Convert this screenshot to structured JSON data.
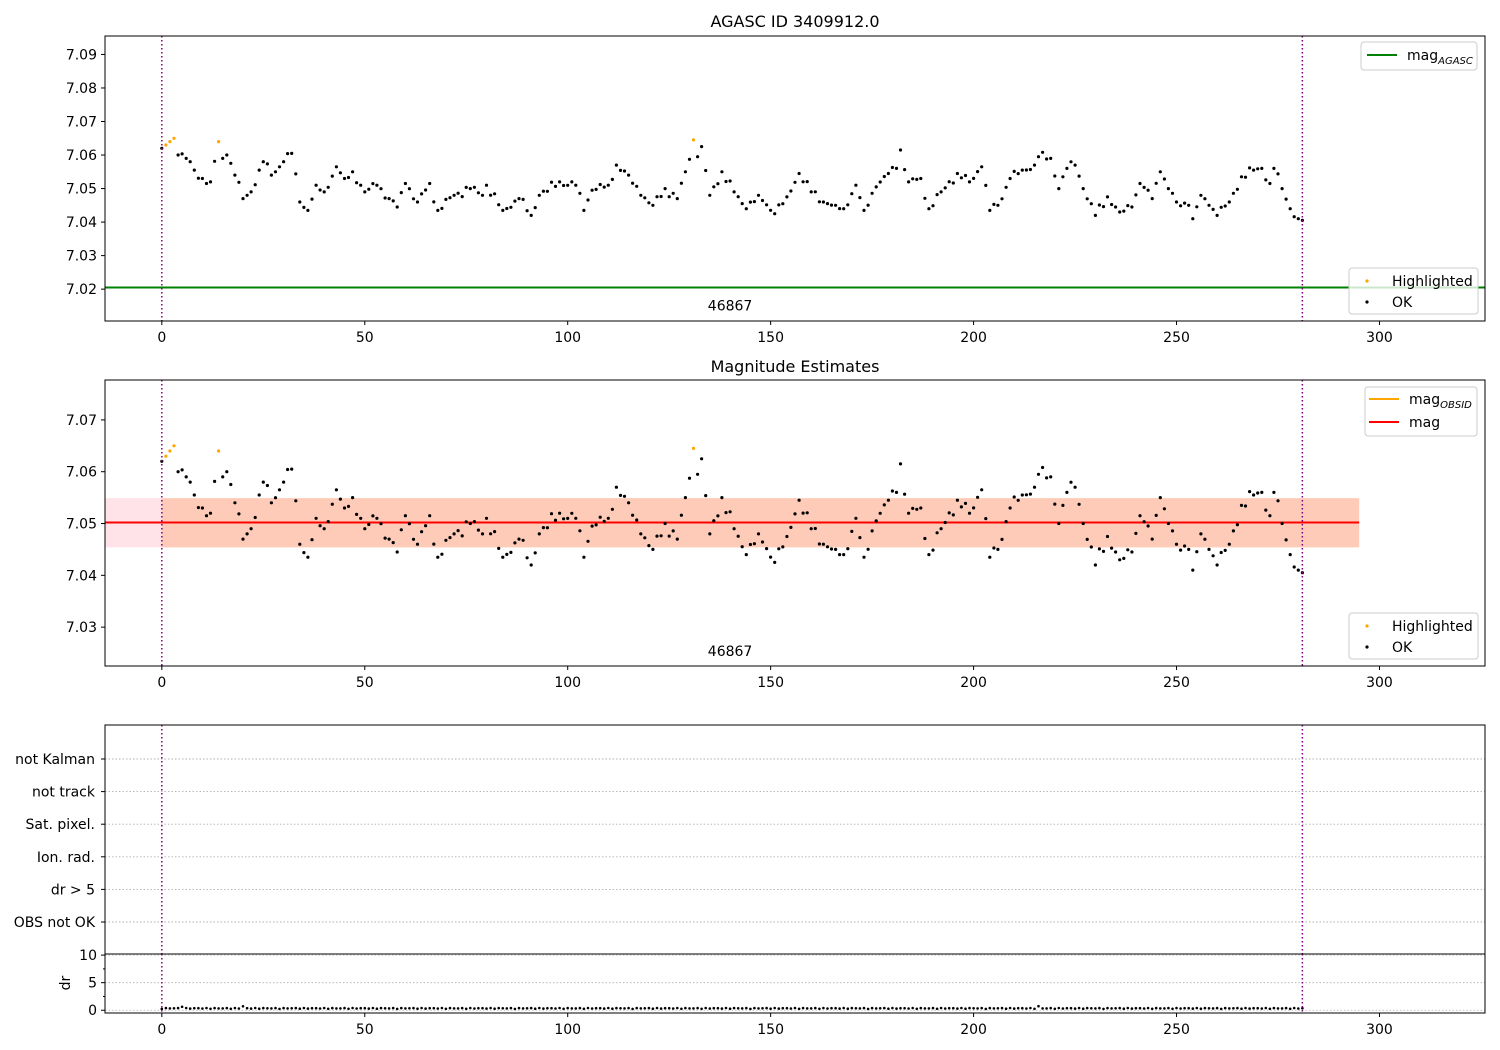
{
  "colors": {
    "ok": "#000000",
    "highlighted": "#ffa500",
    "mag_agasc": "#008000",
    "mag_obsid": "#ffa500",
    "mag": "#ff0000",
    "band_outer": "#ffc0cb",
    "band_inner": "#ffb48a",
    "obs_boundary": "#800080",
    "grid": "#b0b0b0"
  },
  "chart_data": [
    {
      "type": "scatter",
      "title": "AGASC ID 3409912.0",
      "xlim": [
        -14,
        326
      ],
      "ylim": [
        7.0105,
        7.0955
      ],
      "xticks": [
        0,
        50,
        100,
        150,
        200,
        250,
        300
      ],
      "yticks": [
        7.02,
        7.03,
        7.04,
        7.05,
        7.06,
        7.07,
        7.08,
        7.09
      ],
      "obs_boundaries": [
        0,
        281
      ],
      "obsid_label": {
        "text": "46867",
        "x": 140,
        "y": 7.0137
      },
      "hline": {
        "name": "mag",
        "subscript": "AGASC",
        "y": 7.0205,
        "x": [
          -14,
          326
        ]
      },
      "legend": [
        {
          "position": "upper-right",
          "entries": [
            {
              "name": "mag",
              "subscript": "AGASC",
              "kind": "line",
              "color_key": "mag_agasc"
            }
          ]
        },
        {
          "position": "lower-right",
          "entries": [
            {
              "name": "Highlighted",
              "kind": "dot",
              "color_key": "highlighted"
            },
            {
              "name": "OK",
              "kind": "dot",
              "color_key": "ok"
            }
          ]
        }
      ]
    },
    {
      "type": "scatter",
      "title": "Magnitude Estimates",
      "xlim": [
        -14,
        326
      ],
      "ylim": [
        7.0225,
        7.0777
      ],
      "xticks": [
        0,
        50,
        100,
        150,
        200,
        250,
        300
      ],
      "yticks": [
        7.03,
        7.04,
        7.05,
        7.06,
        7.07
      ],
      "obs_boundaries": [
        0,
        281
      ],
      "obsid_label": {
        "text": "46867",
        "x": 140,
        "y": 7.0244
      },
      "mag_line": {
        "y": 7.0502,
        "x": [
          -14,
          295
        ]
      },
      "mag_obsid_line": {
        "y": 7.0502,
        "x": [
          0,
          281
        ]
      },
      "band_outer": {
        "y": [
          7.0454,
          7.0549
        ],
        "x": [
          -14,
          295
        ]
      },
      "band_inner": {
        "y": [
          7.0454,
          7.0549
        ],
        "x": [
          0,
          295
        ]
      },
      "legend": [
        {
          "position": "upper-right",
          "entries": [
            {
              "name": "mag",
              "subscript": "OBSID",
              "kind": "line",
              "color_key": "mag_obsid"
            },
            {
              "name": "mag",
              "kind": "line",
              "color_key": "mag"
            }
          ]
        },
        {
          "position": "lower-right",
          "entries": [
            {
              "name": "Highlighted",
              "kind": "dot",
              "color_key": "highlighted"
            },
            {
              "name": "OK",
              "kind": "dot",
              "color_key": "ok"
            }
          ]
        }
      ]
    },
    {
      "type": "scatter",
      "title": "",
      "categories": [
        "OBS not OK",
        "dr > 5",
        "Ion. rad.",
        "Sat. pixel.",
        "not track",
        "not Kalman"
      ],
      "flags_set": [],
      "xlim": [
        -14,
        326
      ],
      "obs_boundaries": [
        0,
        281
      ]
    },
    {
      "type": "scatter",
      "title": "",
      "ylabel": "dr",
      "xlim": [
        -14,
        326
      ],
      "ylim": [
        -0.5,
        10.2
      ],
      "yticks": [
        0,
        5,
        10
      ],
      "xticks": [
        0,
        50,
        100,
        150,
        200,
        250,
        300
      ],
      "obs_boundaries": [
        0,
        281
      ]
    }
  ],
  "mag_series": {
    "x_range": [
      0,
      281
    ],
    "anchors": [
      [
        0,
        7.062
      ],
      [
        1,
        7.063
      ],
      [
        2,
        7.064
      ],
      [
        3,
        7.065
      ],
      [
        4,
        7.06
      ],
      [
        6,
        7.059
      ],
      [
        7,
        7.058
      ],
      [
        8,
        7.0555
      ],
      [
        10,
        7.053
      ],
      [
        12,
        7.052
      ],
      [
        14,
        7.064
      ],
      [
        15,
        7.059
      ],
      [
        16,
        7.06
      ],
      [
        18,
        7.054
      ],
      [
        20,
        7.047
      ],
      [
        22,
        7.049
      ],
      [
        24,
        7.0555
      ],
      [
        25,
        7.058
      ],
      [
        27,
        7.054
      ],
      [
        29,
        7.0565
      ],
      [
        30,
        7.058
      ],
      [
        32,
        7.0605
      ],
      [
        34,
        7.046
      ],
      [
        36,
        7.0435
      ],
      [
        38,
        7.051
      ],
      [
        40,
        7.049
      ],
      [
        43,
        7.0565
      ],
      [
        45,
        7.053
      ],
      [
        47,
        7.055
      ],
      [
        50,
        7.049
      ],
      [
        53,
        7.051
      ],
      [
        56,
        7.047
      ],
      [
        58,
        7.0445
      ],
      [
        60,
        7.0515
      ],
      [
        63,
        7.046
      ],
      [
        66,
        7.0515
      ],
      [
        68,
        7.0435
      ],
      [
        72,
        7.048
      ],
      [
        76,
        7.05
      ],
      [
        79,
        7.048
      ],
      [
        80,
        7.051
      ],
      [
        84,
        7.0435
      ],
      [
        88,
        7.047
      ],
      [
        91,
        7.042
      ],
      [
        93,
        7.048
      ],
      [
        98,
        7.052
      ],
      [
        102,
        7.051
      ],
      [
        104,
        7.0435
      ],
      [
        106,
        7.0495
      ],
      [
        110,
        7.051
      ],
      [
        112,
        7.057
      ],
      [
        115,
        7.054
      ],
      [
        118,
        7.048
      ],
      [
        121,
        7.045
      ],
      [
        124,
        7.05
      ],
      [
        127,
        7.047
      ],
      [
        129,
        7.055
      ],
      [
        131,
        7.0645
      ],
      [
        132,
        7.0595
      ],
      [
        133,
        7.0625
      ],
      [
        135,
        7.048
      ],
      [
        138,
        7.055
      ],
      [
        141,
        7.049
      ],
      [
        144,
        7.044
      ],
      [
        147,
        7.048
      ],
      [
        151,
        7.0425
      ],
      [
        154,
        7.0475
      ],
      [
        157,
        7.0545
      ],
      [
        160,
        7.049
      ],
      [
        163,
        7.046
      ],
      [
        166,
        7.045
      ],
      [
        168,
        7.044
      ],
      [
        171,
        7.051
      ],
      [
        173,
        7.0435
      ],
      [
        176,
        7.0505
      ],
      [
        179,
        7.0545
      ],
      [
        181,
        7.056
      ],
      [
        182,
        7.0615
      ],
      [
        184,
        7.052
      ],
      [
        187,
        7.053
      ],
      [
        189,
        7.044
      ],
      [
        192,
        7.049
      ],
      [
        196,
        7.0545
      ],
      [
        199,
        7.052
      ],
      [
        202,
        7.0565
      ],
      [
        204,
        7.0435
      ],
      [
        206,
        7.045
      ],
      [
        209,
        7.053
      ],
      [
        212,
        7.0555
      ],
      [
        215,
        7.057
      ],
      [
        216,
        7.0595
      ],
      [
        219,
        7.059
      ],
      [
        221,
        7.05
      ],
      [
        223,
        7.056
      ],
      [
        225,
        7.057
      ],
      [
        227,
        7.05
      ],
      [
        230,
        7.042
      ],
      [
        233,
        7.0475
      ],
      [
        236,
        7.043
      ],
      [
        239,
        7.0445
      ],
      [
        241,
        7.0515
      ],
      [
        244,
        7.047
      ],
      [
        246,
        7.055
      ],
      [
        248,
        7.05
      ],
      [
        250,
        7.046
      ],
      [
        253,
        7.045
      ],
      [
        254,
        7.041
      ],
      [
        256,
        7.048
      ],
      [
        258,
        7.045
      ],
      [
        260,
        7.042
      ],
      [
        263,
        7.046
      ],
      [
        266,
        7.0535
      ],
      [
        269,
        7.0555
      ],
      [
        271,
        7.056
      ],
      [
        273,
        7.0515
      ],
      [
        274,
        7.056
      ],
      [
        276,
        7.05
      ],
      [
        278,
        7.044
      ],
      [
        280,
        7.041
      ],
      [
        281,
        7.0405
      ]
    ],
    "highlighted_x": [
      1,
      2,
      3,
      14,
      131
    ]
  }
}
